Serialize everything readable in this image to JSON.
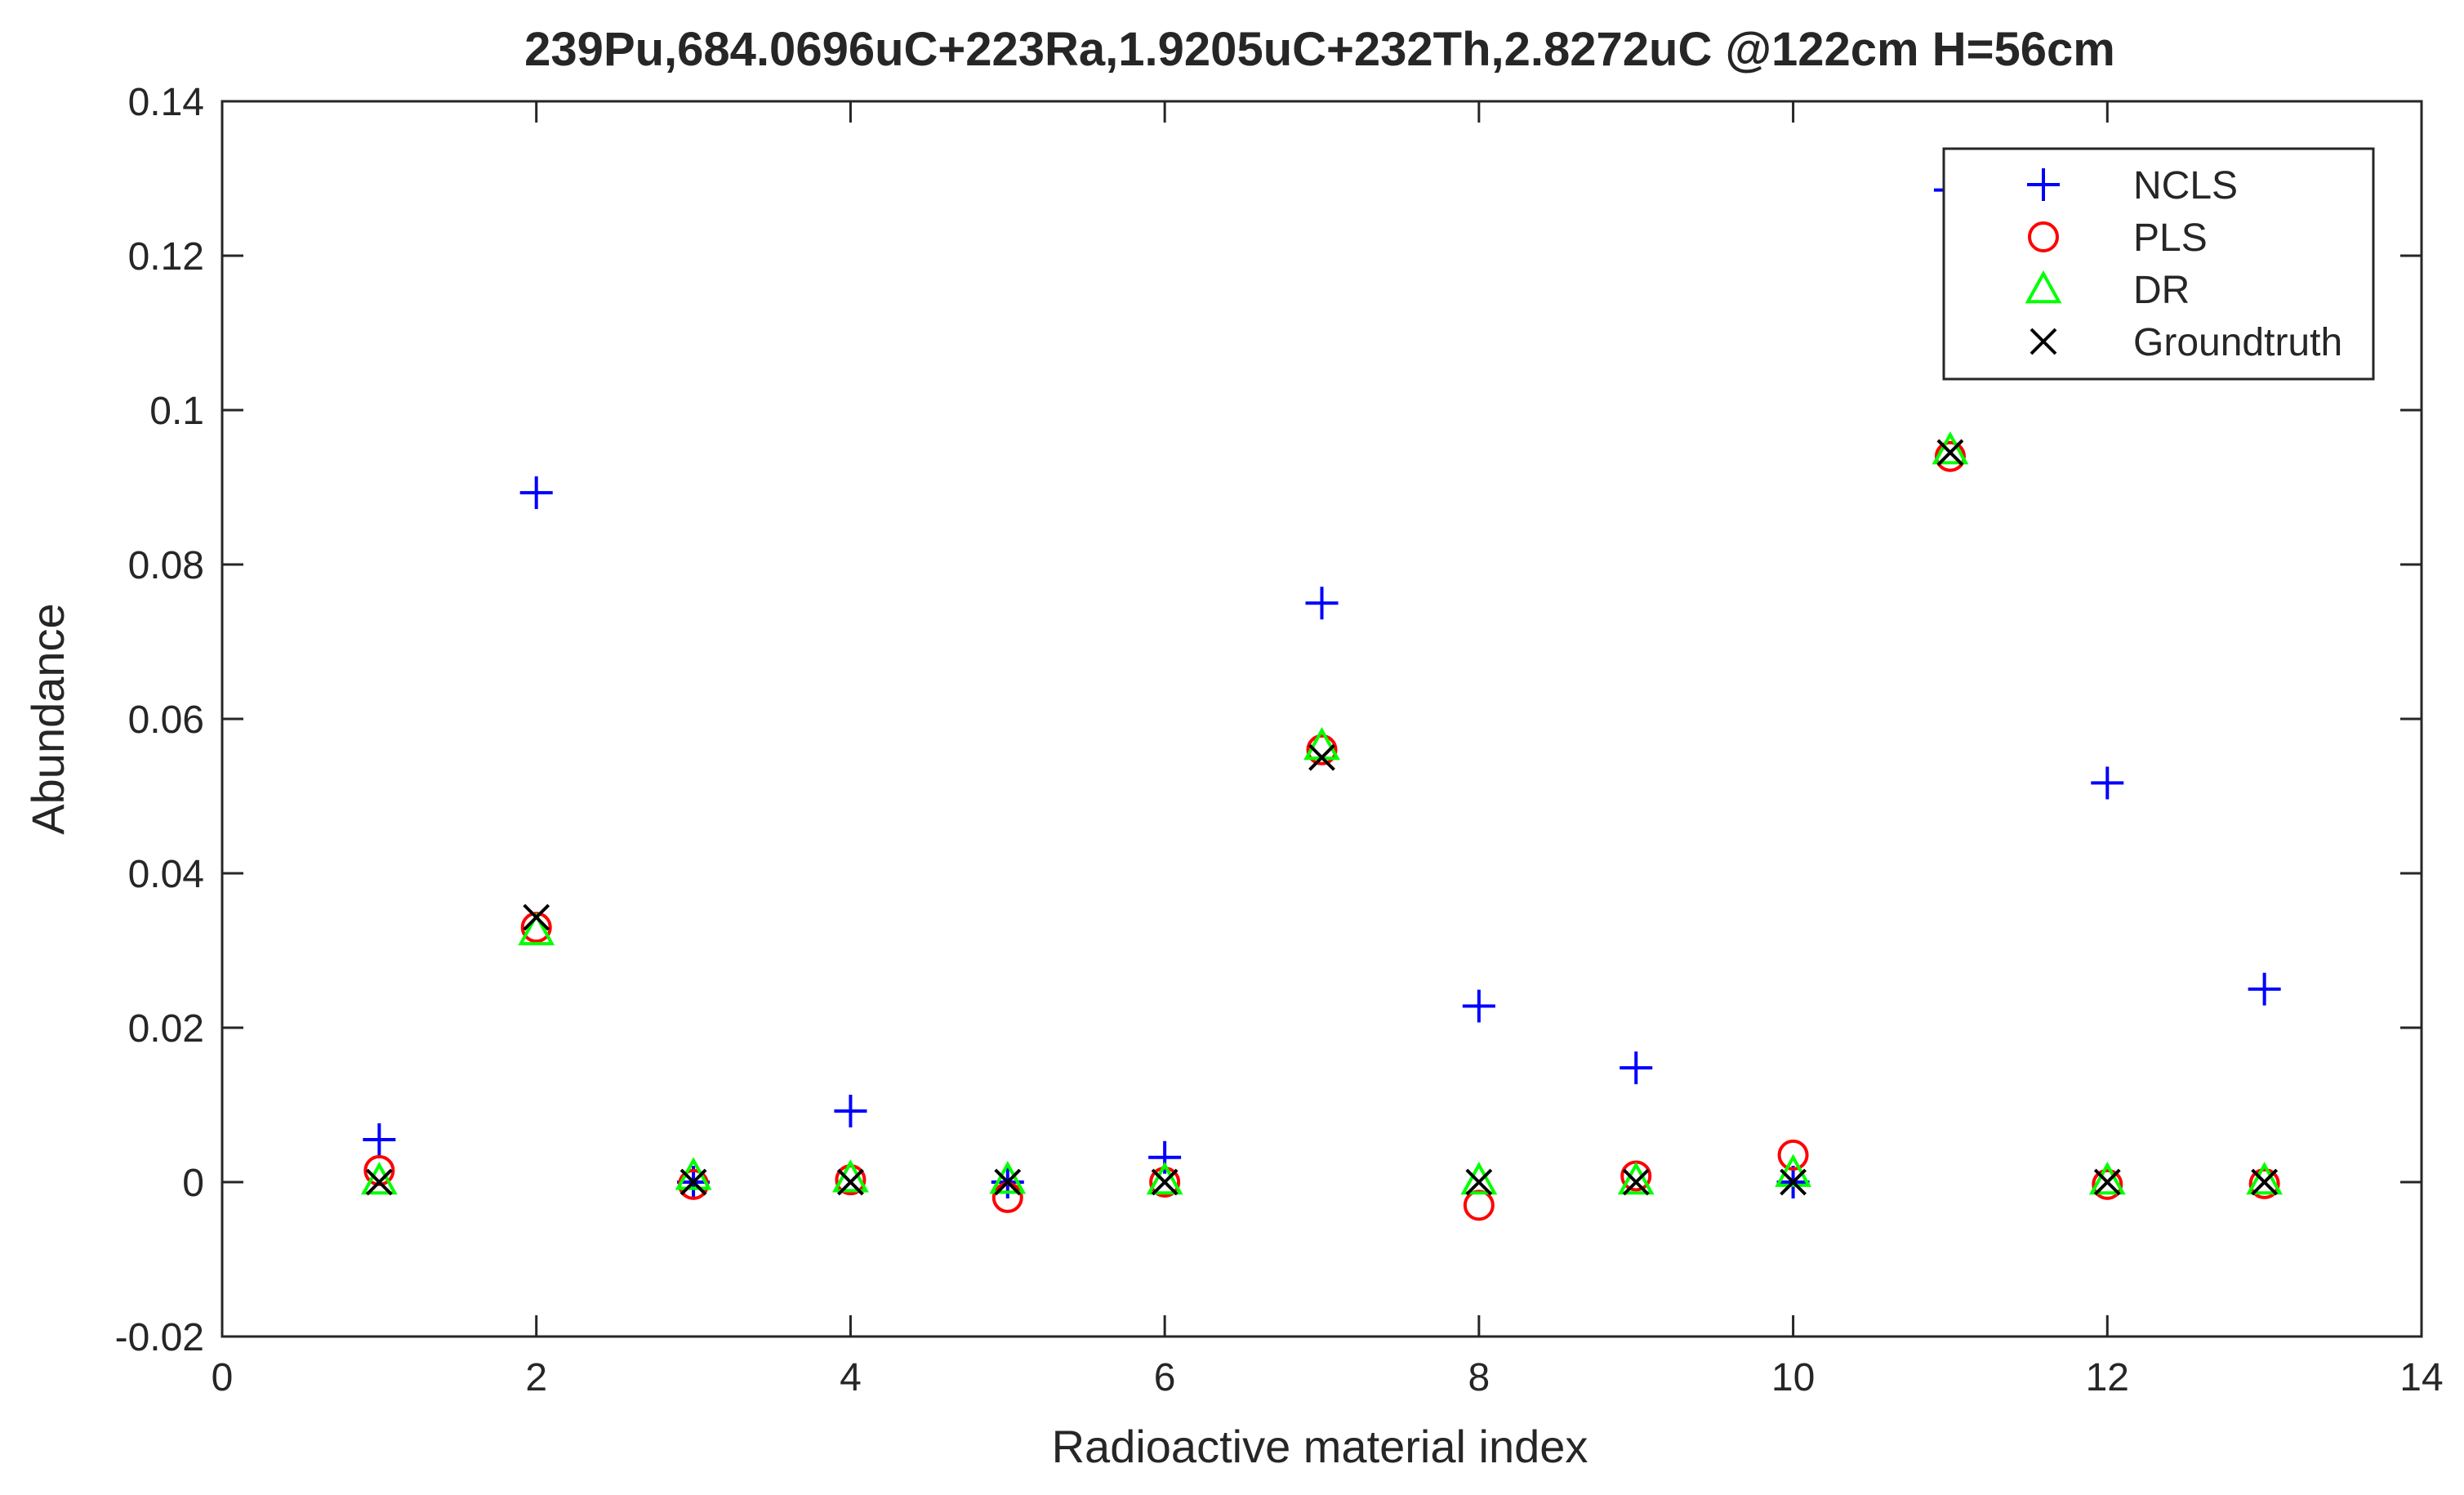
{
  "chart_data": {
    "type": "scatter",
    "title": "239Pu,684.0696uC+223Ra,1.9205uC+232Th,2.8272uC @122cm H=56cm",
    "xlabel": "Radioactive material index",
    "ylabel": "Abundance",
    "xlim": [
      0,
      14
    ],
    "ylim": [
      -0.02,
      0.14
    ],
    "xticks": [
      0,
      2,
      4,
      6,
      8,
      10,
      12,
      14
    ],
    "xtick_labels": [
      "0",
      "2",
      "4",
      "6",
      "8",
      "10",
      "12",
      "14"
    ],
    "yticks": [
      -0.02,
      0,
      0.02,
      0.04,
      0.06,
      0.08,
      0.1,
      0.12,
      0.14
    ],
    "ytick_labels": [
      "-0.02",
      "0",
      "0.02",
      "0.04",
      "0.06",
      "0.08",
      "0.1",
      "0.12",
      "0.14"
    ],
    "grid": false,
    "legend_position": "top-right",
    "x": [
      1,
      2,
      3,
      4,
      5,
      6,
      7,
      8,
      9,
      10,
      11,
      12,
      13
    ],
    "series": [
      {
        "name": "NCLS",
        "marker": "plus",
        "color": "#0000ff",
        "values": [
          0.0055,
          0.0893,
          0.0,
          0.0092,
          0.0,
          0.0032,
          0.075,
          0.0228,
          0.0148,
          0.0,
          0.1285,
          0.0517,
          0.025
        ]
      },
      {
        "name": "PLS",
        "marker": "circle",
        "color": "#ff0000",
        "values": [
          0.0015,
          0.033,
          -0.0003,
          0.0003,
          -0.002,
          0.0,
          0.056,
          -0.003,
          0.0008,
          0.0035,
          0.094,
          -0.0003,
          -0.0002
        ]
      },
      {
        "name": "DR",
        "marker": "triangle",
        "color": "#00ff00",
        "values": [
          0.0002,
          0.0325,
          0.0008,
          0.0005,
          0.0003,
          0.0002,
          0.0565,
          0.0002,
          0.0002,
          0.0012,
          0.0948,
          0.0002,
          0.0002
        ]
      },
      {
        "name": "Groundtruth",
        "marker": "x",
        "color": "#000000",
        "values": [
          0.0,
          0.0343,
          0.0,
          0.0,
          0.0,
          0.0,
          0.055,
          0.0,
          0.0,
          0.0,
          0.0945,
          0.0,
          0.0
        ]
      }
    ]
  }
}
